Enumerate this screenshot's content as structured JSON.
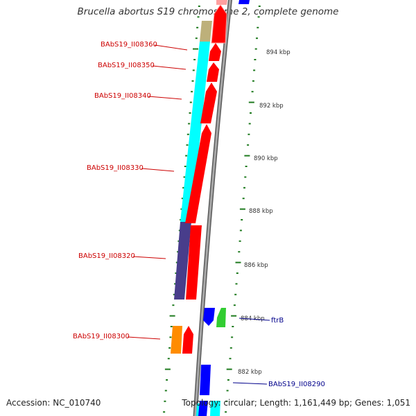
{
  "title": "Brucella abortus S19 chromosome 2, complete genome",
  "footer": {
    "accession": "Accession: NC_010740",
    "topology": "Topology: circular; Length: 1,161,449 bp; Genes: 1,051"
  },
  "colors": {
    "label_red": "#cc0000",
    "label_blue": "#00008b",
    "tick_green": "#1e7a1e",
    "backbone_gray": "#8c8c8c",
    "cds_red": "#ff0000",
    "cog_cyan": "#00ffff",
    "cog_khaki": "#bdb07a",
    "cog_slate": "#483d8b",
    "cog_orange": "#ff8c00",
    "cds_blue": "#0000ff",
    "cog_green": "#32cd32"
  },
  "ticks": [
    {
      "label": "894 kbp"
    },
    {
      "label": "892 kbp"
    },
    {
      "label": "890 kbp"
    },
    {
      "label": "888 kbp"
    },
    {
      "label": "886 kbp"
    },
    {
      "label": "884 kbp"
    },
    {
      "label": "882 kbp"
    }
  ],
  "genes": [
    {
      "name": "BAbS19_II08360"
    },
    {
      "name": "BAbS19_II08350"
    },
    {
      "name": "BAbS19_II08340"
    },
    {
      "name": "BAbS19_II08330"
    },
    {
      "name": "BAbS19_II08320"
    },
    {
      "name": "BAbS19_II08300"
    },
    {
      "name": "ftrB"
    },
    {
      "name": "BAbS19_II08290"
    }
  ]
}
